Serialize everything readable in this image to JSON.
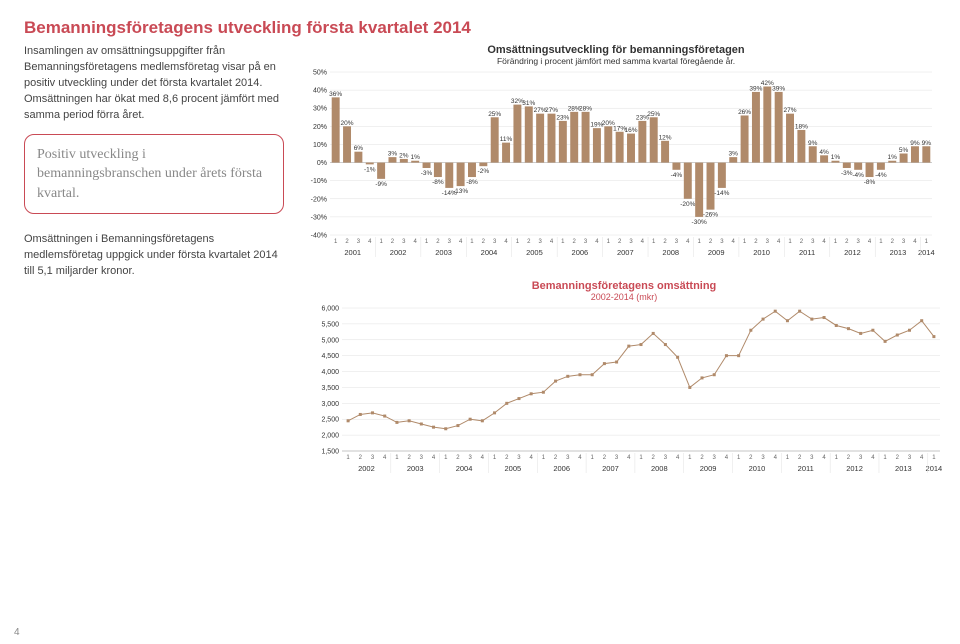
{
  "page": {
    "title": "Bemanningsföretagens utveckling första kvartalet 2014",
    "body": "Insamlingen av omsättningsuppgifter från Bemanningsföretagens medlemsföretag visar på en positiv utveckling under det första kvartalet 2014. Omsättningen har ökat med 8,6 procent jämfört med samma period förra året.",
    "callout": "Positiv utveckling i bemanningsbranschen under årets första kvartal.",
    "lower": "Omsättningen i Bemanningsföretagens medlemsföretag uppgick under första kvartalet 2014 till 5,1 miljarder kronor.",
    "pagenum": "4"
  },
  "chart1": {
    "title": "Omsättningsutveckling för bemanningsföretagen",
    "subtitle": "Förändring i procent jämfört med samma kvartal föregående år.",
    "ylim": [
      -40,
      50
    ],
    "ytick_step": 10,
    "years": [
      "2001",
      "2002",
      "2003",
      "2004",
      "2005",
      "2006",
      "2007",
      "2008",
      "2009",
      "2010",
      "2011",
      "2012",
      "2013",
      "2014"
    ],
    "start_year_quarters": 4,
    "data": [
      {
        "label": "36%",
        "v": 36
      },
      {
        "label": "20%",
        "v": 20
      },
      {
        "label": "6%",
        "v": 6
      },
      {
        "label": "-1%",
        "v": -1
      },
      {
        "label": "-9%",
        "v": -9
      },
      {
        "label": "3%",
        "v": 3
      },
      {
        "label": "2%",
        "v": 2
      },
      {
        "label": "1%",
        "v": 1
      },
      {
        "label": "-3%",
        "v": -3
      },
      {
        "label": "-8%",
        "v": -8
      },
      {
        "label": "-14%",
        "v": -14
      },
      {
        "label": "-13%",
        "v": -13
      },
      {
        "label": "-8%",
        "v": -8
      },
      {
        "label": "-2%",
        "v": -2
      },
      {
        "label": "25%",
        "v": 25
      },
      {
        "label": "11%",
        "v": 11
      },
      {
        "label": "32%",
        "v": 32
      },
      {
        "label": "31%",
        "v": 31
      },
      {
        "label": "27%",
        "v": 27
      },
      {
        "label": "27%",
        "v": 27
      },
      {
        "label": "23%",
        "v": 23
      },
      {
        "label": "28%",
        "v": 28
      },
      {
        "label": "28%",
        "v": 28
      },
      {
        "label": "19%",
        "v": 19
      },
      {
        "label": "20%",
        "v": 20
      },
      {
        "label": "17%",
        "v": 17
      },
      {
        "label": "16%",
        "v": 16
      },
      {
        "label": "23%",
        "v": 23
      },
      {
        "label": "25%",
        "v": 25
      },
      {
        "label": "12%",
        "v": 12
      },
      {
        "label": "-4%",
        "v": -4
      },
      {
        "label": "-20%",
        "v": -20
      },
      {
        "label": "-30%",
        "v": -30
      },
      {
        "label": "-26%",
        "v": -26
      },
      {
        "label": "-14%",
        "v": -14
      },
      {
        "label": "3%",
        "v": 3
      },
      {
        "label": "26%",
        "v": 26
      },
      {
        "label": "39%",
        "v": 39
      },
      {
        "label": "42%",
        "v": 42
      },
      {
        "label": "39%",
        "v": 39
      },
      {
        "label": "27%",
        "v": 27
      },
      {
        "label": "18%",
        "v": 18
      },
      {
        "label": "9%",
        "v": 9
      },
      {
        "label": "4%",
        "v": 4
      },
      {
        "label": "1%",
        "v": 1
      },
      {
        "label": "-3%",
        "v": -3
      },
      {
        "label": "-4%",
        "v": -4
      },
      {
        "label": "-8%",
        "v": -8
      },
      {
        "label": "-4%",
        "v": -4
      },
      {
        "label": "1%",
        "v": 1
      },
      {
        "label": "5%",
        "v": 5
      },
      {
        "label": "9%",
        "v": 9
      },
      {
        "label": "9%",
        "v": 9
      }
    ],
    "colors": {
      "bar": "#b08a6a",
      "grid": "#e0e0e0",
      "axis": "#999999",
      "text": "#333333"
    }
  },
  "chart2": {
    "title": "Bemanningsföretagens omsättning",
    "subtitle": "2002-2014 (mkr)",
    "ylim": [
      1500,
      6000
    ],
    "ytick_step": 500,
    "years": [
      "2002",
      "2003",
      "2004",
      "2005",
      "2006",
      "2007",
      "2008",
      "2009",
      "2010",
      "2011",
      "2012",
      "2013",
      "2014"
    ],
    "data": [
      2450,
      2650,
      2700,
      2600,
      2400,
      2450,
      2350,
      2250,
      2200,
      2300,
      2500,
      2450,
      2700,
      3000,
      3150,
      3300,
      3350,
      3700,
      3850,
      3900,
      3900,
      4250,
      4300,
      4800,
      4850,
      5200,
      4850,
      4450,
      3500,
      3800,
      3900,
      4500,
      4500,
      5300,
      5650,
      5900,
      5600,
      5900,
      5650,
      5700,
      5450,
      5350,
      5200,
      5300,
      4950,
      5150,
      5300,
      5600,
      5100
    ],
    "colors": {
      "line": "#b08a6a",
      "grid": "#e0e0e0",
      "axis": "#999999",
      "text": "#333333"
    }
  }
}
